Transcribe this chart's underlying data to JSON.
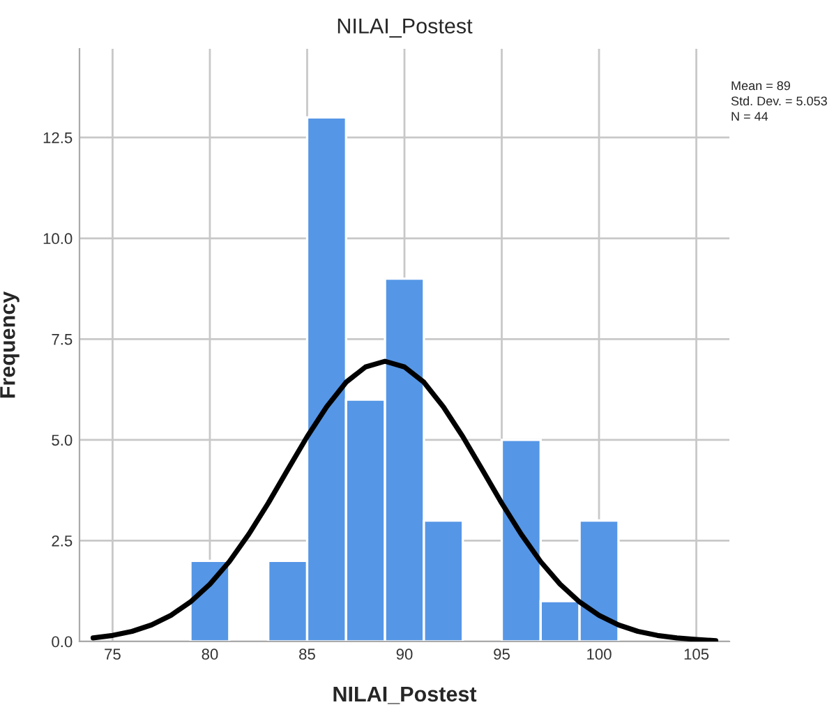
{
  "chart_data": {
    "type": "histogram",
    "title": "NILAI_Postest",
    "xlabel": "NILAI_Postest",
    "ylabel": "Frequency",
    "bins": [
      79,
      81,
      83,
      85,
      87,
      89,
      91,
      93,
      95,
      97,
      99,
      101
    ],
    "values": [
      2,
      0,
      2,
      13,
      6,
      9,
      3,
      0,
      5,
      1,
      3
    ],
    "color": "#5596e6",
    "series": [
      {
        "type": "line",
        "color": "#000000",
        "x": [
          74,
          75,
          76,
          77,
          78,
          79,
          80,
          81,
          82,
          83,
          84,
          85,
          86,
          87,
          88,
          89,
          90,
          91,
          92,
          93,
          94,
          95,
          96,
          97,
          98,
          99,
          100,
          101,
          102,
          103,
          104,
          105,
          106
        ],
        "values": [
          0.09,
          0.15,
          0.25,
          0.41,
          0.65,
          0.98,
          1.42,
          1.98,
          2.66,
          3.43,
          4.26,
          5.08,
          5.82,
          6.43,
          6.81,
          6.95,
          6.81,
          6.43,
          5.82,
          5.08,
          4.26,
          3.43,
          2.66,
          1.98,
          1.42,
          0.98,
          0.65,
          0.41,
          0.25,
          0.15,
          0.09,
          0.05,
          0.02
        ]
      }
    ],
    "xlim": [
      73.3,
      106.7
    ],
    "ylim": [
      0,
      14.7
    ],
    "xticks": [
      75,
      80,
      85,
      90,
      95,
      100,
      105
    ],
    "yticks": [
      {
        "value": 0,
        "label": "0.0"
      },
      {
        "value": 2.5,
        "label": "2.5"
      },
      {
        "value": 5,
        "label": "5.0"
      },
      {
        "value": 7.5,
        "label": "7.5"
      },
      {
        "value": 10,
        "label": "10.0"
      },
      {
        "value": 12.5,
        "label": "12.5"
      }
    ],
    "grid": true,
    "annotations": [
      "Mean = 89",
      "Std. Dev. = 5.053",
      "N = 44"
    ]
  }
}
